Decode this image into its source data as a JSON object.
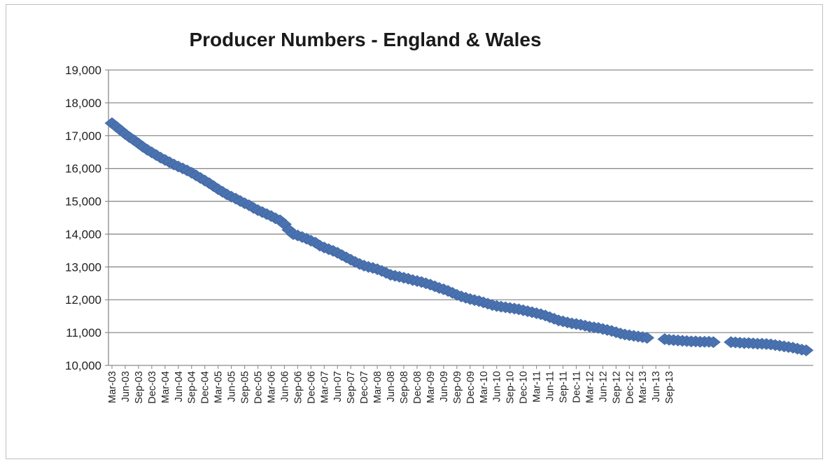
{
  "chart_data": {
    "type": "scatter",
    "title": "Producer Numbers - England & Wales",
    "xlabel": "",
    "ylabel": "",
    "ylim": [
      10000,
      19000
    ],
    "y_ticks": [
      "10,000",
      "11,000",
      "12,000",
      "13,000",
      "14,000",
      "15,000",
      "16,000",
      "17,000",
      "18,000",
      "19,000"
    ],
    "y_tick_values": [
      10000,
      11000,
      12000,
      13000,
      14000,
      15000,
      16000,
      17000,
      18000,
      19000
    ],
    "x_tick_labels": [
      "Mar-03",
      "Jun-03",
      "Sep-03",
      "Dec-03",
      "Mar-04",
      "Jun-04",
      "Sep-04",
      "Dec-04",
      "Mar-05",
      "Jun-05",
      "Sep-05",
      "Dec-05",
      "Mar-06",
      "Jun-06",
      "Sep-06",
      "Dec-06",
      "Mar-07",
      "Jun-07",
      "Sep-07",
      "Dec-07",
      "Mar-08",
      "Jun-08",
      "Sep-08",
      "Dec-08",
      "Mar-09",
      "Jun-09",
      "Sep-09",
      "Dec-09",
      "Mar-10",
      "Jun-10",
      "Sep-10",
      "Dec-10",
      "Mar-11",
      "Jun-11",
      "Sep-11",
      "Dec-11",
      "Mar-12",
      "Jun-12",
      "Sep-12",
      "Dec-12",
      "Mar-13",
      "Jun-13",
      "Sep-13"
    ],
    "grid": true,
    "legend": "none",
    "marker": "diamond",
    "series_color": "#4a72b0",
    "series": [
      {
        "x_start": "Mar-03",
        "x_step": "month",
        "values": [
          17380,
          17270,
          17160,
          17050,
          16950,
          16860,
          16760,
          16660,
          16570,
          16490,
          16410,
          16330,
          16260,
          16190,
          16120,
          16060,
          16000,
          15940,
          15870,
          15790,
          15710,
          15630,
          15550,
          15460,
          15370,
          15290,
          15210,
          15140,
          15080,
          15010,
          14940,
          14880,
          14800,
          14730,
          14670,
          14610,
          14550,
          14480,
          14420,
          14300,
          14130,
          14000,
          13960,
          13910,
          13860,
          13800,
          13740,
          13650,
          13590,
          13540,
          13490,
          13430,
          13360,
          13290,
          13220,
          13150,
          13090,
          13040,
          13000,
          12970,
          12930,
          12880,
          12820,
          12760,
          12730,
          12700,
          12670,
          12640,
          12600,
          12570,
          12540,
          12500,
          12460,
          12410,
          12360,
          12320,
          12270,
          12210,
          12150,
          12100,
          12060,
          12020,
          11990,
          11960,
          11920,
          11880,
          11840,
          11810,
          11790,
          11770,
          11750,
          11730,
          11710,
          11680,
          11650,
          11620,
          11590,
          11560,
          11520,
          11470,
          11420,
          11370,
          11340,
          11310,
          11280,
          11260,
          11240,
          11210,
          11180,
          11160,
          11140,
          11110,
          11080,
          11050,
          11010,
          10970,
          10940,
          10920,
          10900,
          10880,
          10860,
          10840,
          null,
          null,
          null,
          10800,
          10780,
          10770,
          10760,
          10750,
          10740,
          10730,
          10730,
          10720,
          10720,
          10720,
          10710,
          null,
          null,
          null,
          10710,
          10700,
          10690,
          10680,
          10680,
          10670,
          10660,
          10660,
          10650,
          10640,
          10620,
          10600,
          10580,
          10560,
          10540,
          10510,
          10480,
          10460
        ]
      }
    ]
  }
}
